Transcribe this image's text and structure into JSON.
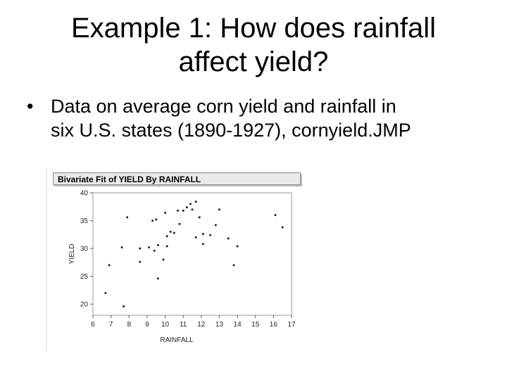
{
  "slide": {
    "title_line1": "Example 1: How does rainfall",
    "title_line2": "affect yield?",
    "bullet_symbol": "•",
    "bullet_line1": "Data on average corn yield and rainfall in",
    "bullet_line2": "six U.S. states (1890-1927), cornyield.JMP"
  },
  "chart_data": {
    "type": "scatter",
    "title": "Bivariate Fit of YIELD By RAINFALL",
    "xlabel": "RAINFALL",
    "ylabel": "YIELD",
    "xlim": [
      6,
      17
    ],
    "ylim": [
      18,
      40
    ],
    "xticks": [
      6,
      7,
      8,
      9,
      10,
      11,
      12,
      13,
      14,
      15,
      16,
      17
    ],
    "yticks": [
      20,
      25,
      30,
      35,
      40
    ],
    "grid": false,
    "points": [
      {
        "x": 6.7,
        "y": 22
      },
      {
        "x": 6.9,
        "y": 27
      },
      {
        "x": 7.7,
        "y": 19.6
      },
      {
        "x": 7.6,
        "y": 30.2
      },
      {
        "x": 7.9,
        "y": 35.6
      },
      {
        "x": 8.6,
        "y": 30
      },
      {
        "x": 8.6,
        "y": 27.6
      },
      {
        "x": 9.1,
        "y": 30.2
      },
      {
        "x": 9.3,
        "y": 35
      },
      {
        "x": 9.4,
        "y": 29.6
      },
      {
        "x": 9.6,
        "y": 30.6
      },
      {
        "x": 9.5,
        "y": 35.2
      },
      {
        "x": 9.6,
        "y": 24.6
      },
      {
        "x": 9.9,
        "y": 28
      },
      {
        "x": 10.0,
        "y": 36.4
      },
      {
        "x": 10.1,
        "y": 30.4
      },
      {
        "x": 10.1,
        "y": 32.2
      },
      {
        "x": 10.3,
        "y": 33
      },
      {
        "x": 10.5,
        "y": 32.8
      },
      {
        "x": 10.7,
        "y": 36.8
      },
      {
        "x": 10.8,
        "y": 34.4
      },
      {
        "x": 11.0,
        "y": 36.8
      },
      {
        "x": 11.2,
        "y": 37.4
      },
      {
        "x": 11.4,
        "y": 38
      },
      {
        "x": 11.5,
        "y": 37
      },
      {
        "x": 11.7,
        "y": 38.4
      },
      {
        "x": 11.7,
        "y": 32
      },
      {
        "x": 11.9,
        "y": 35.6
      },
      {
        "x": 12.1,
        "y": 32.6
      },
      {
        "x": 12.1,
        "y": 30.8
      },
      {
        "x": 12.5,
        "y": 32.4
      },
      {
        "x": 12.8,
        "y": 34.2
      },
      {
        "x": 13.0,
        "y": 37
      },
      {
        "x": 13.5,
        "y": 31.8
      },
      {
        "x": 13.8,
        "y": 27
      },
      {
        "x": 14.0,
        "y": 30.4
      },
      {
        "x": 16.1,
        "y": 36
      },
      {
        "x": 16.5,
        "y": 33.8
      }
    ]
  }
}
